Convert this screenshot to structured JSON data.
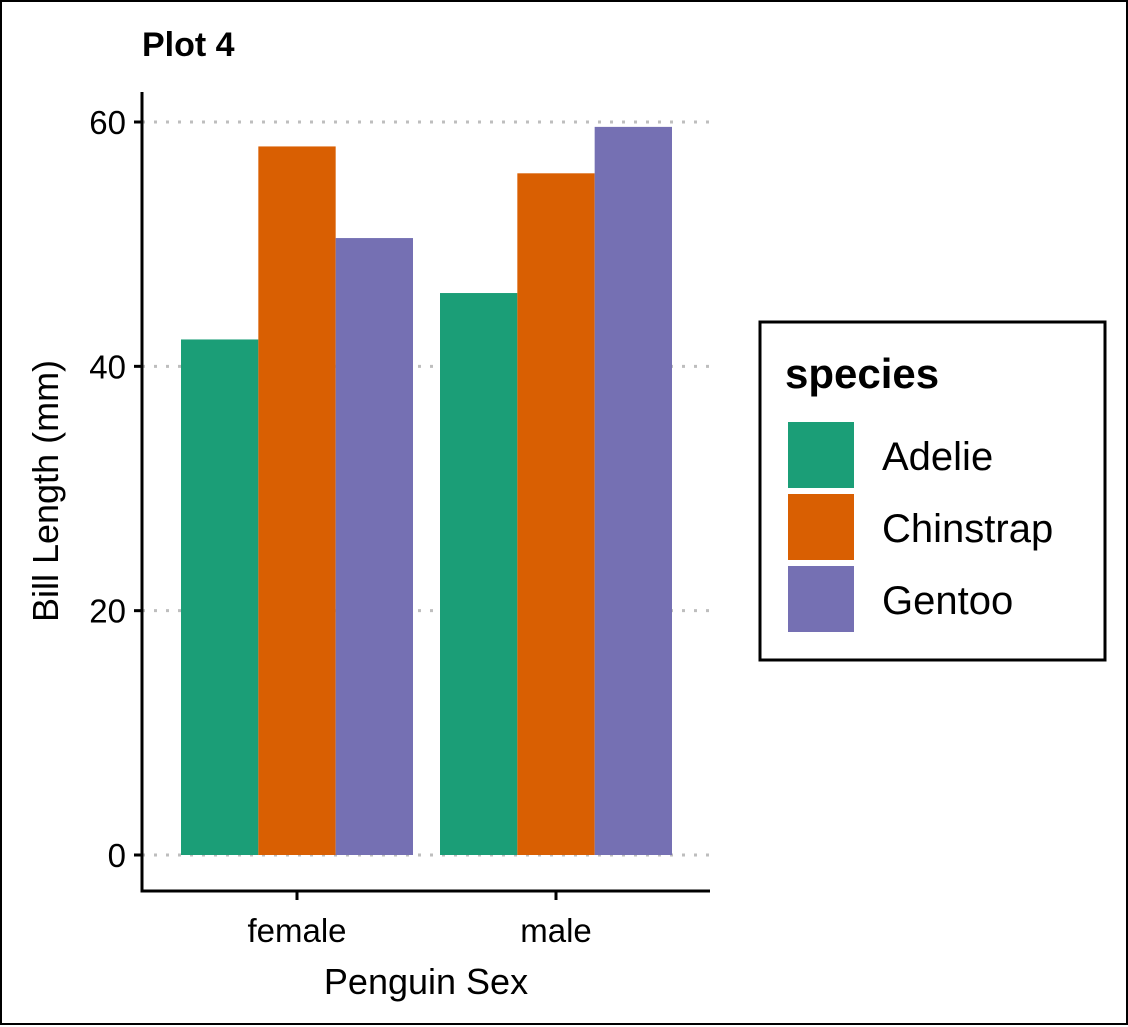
{
  "chart_data": {
    "type": "bar",
    "title": "Plot 4",
    "xlabel": "Penguin Sex",
    "ylabel": "Bill Length (mm)",
    "categories": [
      "female",
      "male"
    ],
    "ylim": [
      0,
      62.5
    ],
    "yticks": [
      0,
      20,
      40,
      60
    ],
    "grid": "horizontal dotted",
    "legend_position": "right",
    "legend_title": "species",
    "series": [
      {
        "name": "Adelie",
        "color": "#1B9E77",
        "values": [
          42.2,
          46.0
        ]
      },
      {
        "name": "Chinstrap",
        "color": "#D95F02",
        "values": [
          58.0,
          55.8
        ]
      },
      {
        "name": "Gentoo",
        "color": "#7570B3",
        "values": [
          50.5,
          59.6
        ]
      }
    ]
  }
}
